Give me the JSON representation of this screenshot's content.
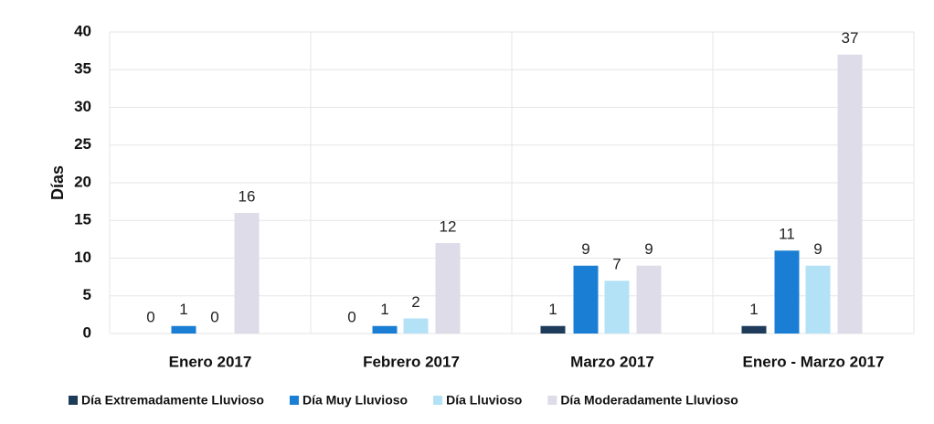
{
  "chart_data": {
    "type": "bar",
    "y_label": "Días",
    "categories": [
      "Enero 2017",
      "Febrero 2017",
      "Marzo 2017",
      "Enero - Marzo 2017"
    ],
    "series": [
      {
        "name": "Día Extremadamente Lluvioso",
        "color": "#1f3b5a",
        "values": [
          0,
          0,
          1,
          1
        ]
      },
      {
        "name": "Día Muy Lluvioso",
        "color": "#1a7fd4",
        "values": [
          1,
          1,
          9,
          11
        ]
      },
      {
        "name": "Día Lluvioso",
        "color": "#b3e2f6",
        "values": [
          0,
          2,
          7,
          9
        ]
      },
      {
        "name": "Día Moderadamente Lluvioso",
        "color": "#dddce8",
        "values": [
          16,
          12,
          9,
          37
        ]
      }
    ],
    "ylim": [
      0,
      40
    ],
    "yticks": [
      0,
      5,
      10,
      15,
      20,
      25,
      30,
      35,
      40
    ],
    "grid": true,
    "legend": "bottom"
  }
}
